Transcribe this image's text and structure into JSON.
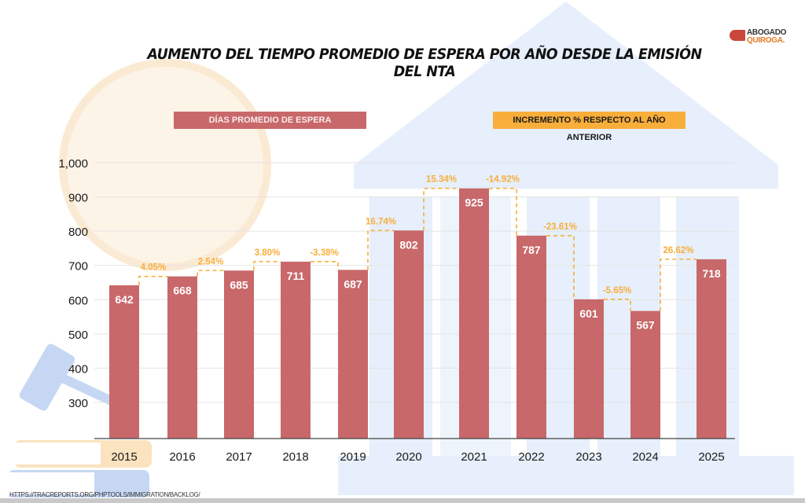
{
  "header": {
    "title": "AUMENTO DEL TIEMPO PROMEDIO DE ESPERA POR AÑO DESDE LA EMISIÓN DEL NTA",
    "logo_line1": "ABOGADO",
    "logo_line2": "QUIROGA."
  },
  "legend": {
    "days_label": "DÍAS PROMEDIO DE ESPERA",
    "increment_label": "INCREMENTO % RESPECTO AL AÑO ANTERIOR"
  },
  "source": "HTTPS://TRACREPORTS.ORG/PHPTOOLS/IMMIGRATION/BACKLOG/",
  "colors": {
    "bar": "#c8686a",
    "increment": "#f8ae3a",
    "text": "#1a1a1a"
  },
  "chart_data": {
    "type": "bar",
    "title": "AUMENTO DEL TIEMPO PROMEDIO DE ESPERA POR AÑO DESDE LA EMISIÓN DEL NTA",
    "xlabel": "",
    "ylabel": "",
    "categories": [
      "2015",
      "2016",
      "2017",
      "2018",
      "2019",
      "2020",
      "2021",
      "2022",
      "2023",
      "2024",
      "2025"
    ],
    "series": [
      {
        "name": "DÍAS PROMEDIO DE ESPERA",
        "values": [
          642,
          668,
          685,
          711,
          687,
          802,
          925,
          787,
          601,
          567,
          718
        ]
      },
      {
        "name": "INCREMENTO % RESPECTO AL AÑO ANTERIOR",
        "values": [
          null,
          "4.05%",
          "2.54%",
          "3.80%",
          "-3.38%",
          "16.74%",
          "15.34%",
          "-14.92%",
          "-23.61%",
          "-5.65%",
          "26.62%"
        ]
      }
    ],
    "yticks": [
      300,
      400,
      500,
      600,
      700,
      800,
      900,
      1000
    ],
    "ytick_labels": [
      "300",
      "400",
      "500",
      "600",
      "700",
      "800",
      "900",
      "1,000"
    ],
    "ylim": [
      195,
      1000
    ],
    "grid": true,
    "legend": "top"
  }
}
